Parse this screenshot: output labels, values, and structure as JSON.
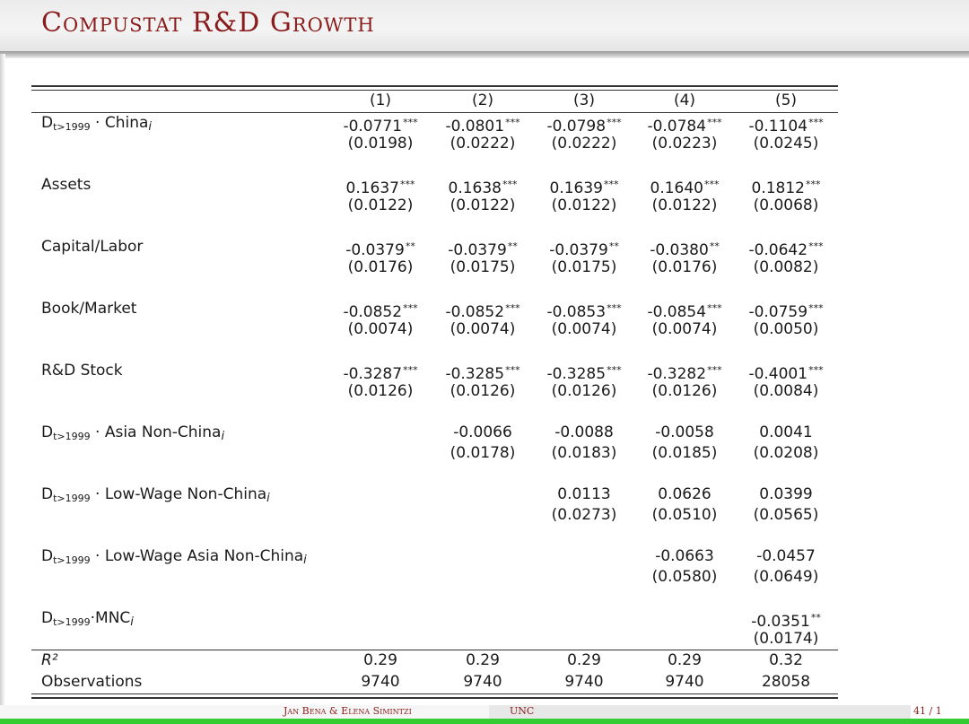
{
  "slide": {
    "title": "Compustat R&D Growth"
  },
  "table": {
    "columns": [
      "(1)",
      "(2)",
      "(3)",
      "(4)",
      "(5)"
    ],
    "rows": [
      {
        "label_main": "D",
        "label_sub": "t>1999",
        "label_rest": " · China",
        "label_idx": "i",
        "coef": [
          "-0.0771",
          "-0.0801",
          "-0.0798",
          "-0.0784",
          "-0.1104"
        ],
        "stars": [
          "***",
          "***",
          "***",
          "***",
          "***"
        ],
        "se": [
          "(0.0198)",
          "(0.0222)",
          "(0.0222)",
          "(0.0223)",
          "(0.0245)"
        ]
      },
      {
        "label_main": "Assets",
        "label_sub": "",
        "label_rest": "",
        "label_idx": "",
        "coef": [
          "0.1637",
          "0.1638",
          "0.1639",
          "0.1640",
          "0.1812"
        ],
        "stars": [
          "***",
          "***",
          "***",
          "***",
          "***"
        ],
        "se": [
          "(0.0122)",
          "(0.0122)",
          "(0.0122)",
          "(0.0122)",
          "(0.0068)"
        ]
      },
      {
        "label_main": "Capital/Labor",
        "label_sub": "",
        "label_rest": "",
        "label_idx": "",
        "coef": [
          "-0.0379",
          "-0.0379",
          "-0.0379",
          "-0.0380",
          "-0.0642"
        ],
        "stars": [
          "**",
          "**",
          "**",
          "**",
          "***"
        ],
        "se": [
          "(0.0176)",
          "(0.0175)",
          "(0.0175)",
          "(0.0176)",
          "(0.0082)"
        ]
      },
      {
        "label_main": "Book/Market",
        "label_sub": "",
        "label_rest": "",
        "label_idx": "",
        "coef": [
          "-0.0852",
          "-0.0852",
          "-0.0853",
          "-0.0854",
          "-0.0759"
        ],
        "stars": [
          "***",
          "***",
          "***",
          "***",
          "***"
        ],
        "se": [
          "(0.0074)",
          "(0.0074)",
          "(0.0074)",
          "(0.0074)",
          "(0.0050)"
        ]
      },
      {
        "label_main": "R&D Stock",
        "label_sub": "",
        "label_rest": "",
        "label_idx": "",
        "coef": [
          "-0.3287",
          "-0.3285",
          "-0.3285",
          "-0.3282",
          "-0.4001"
        ],
        "stars": [
          "***",
          "***",
          "***",
          "***",
          "***"
        ],
        "se": [
          "(0.0126)",
          "(0.0126)",
          "(0.0126)",
          "(0.0126)",
          "(0.0084)"
        ]
      },
      {
        "label_main": "D",
        "label_sub": "t>1999",
        "label_rest": " · Asia Non-China",
        "label_idx": "i",
        "coef": [
          "",
          "-0.0066",
          "-0.0088",
          "-0.0058",
          "0.0041"
        ],
        "stars": [
          "",
          "",
          "",
          "",
          ""
        ],
        "se": [
          "",
          "(0.0178)",
          "(0.0183)",
          "(0.0185)",
          "(0.0208)"
        ]
      },
      {
        "label_main": "D",
        "label_sub": "t>1999",
        "label_rest": " · Low-Wage Non-China",
        "label_idx": "i",
        "coef": [
          "",
          "",
          "0.0113",
          "0.0626",
          "0.0399"
        ],
        "stars": [
          "",
          "",
          "",
          "",
          ""
        ],
        "se": [
          "",
          "",
          "(0.0273)",
          "(0.0510)",
          "(0.0565)"
        ]
      },
      {
        "label_main": "D",
        "label_sub": "t>1999",
        "label_rest": " · Low-Wage Asia Non-China",
        "label_idx": "i",
        "coef": [
          "",
          "",
          "",
          "-0.0663",
          "-0.0457"
        ],
        "stars": [
          "",
          "",
          "",
          "",
          ""
        ],
        "se": [
          "",
          "",
          "",
          "(0.0580)",
          "(0.0649)"
        ]
      },
      {
        "label_main": "D",
        "label_sub": "t>1999",
        "label_rest": "·MNC",
        "label_idx": "i",
        "coef": [
          "",
          "",
          "",
          "",
          "-0.0351"
        ],
        "stars": [
          "",
          "",
          "",
          "",
          "**"
        ],
        "se": [
          "",
          "",
          "",
          "",
          "(0.0174)"
        ]
      }
    ],
    "r2": {
      "label": "R²",
      "values": [
        "0.29",
        "0.29",
        "0.29",
        "0.29",
        "0.32"
      ]
    },
    "obs": {
      "label": "Observations",
      "values": [
        "9740",
        "9740",
        "9740",
        "9740",
        "28058"
      ]
    }
  },
  "footer": {
    "authors": "Jan Bena & Elena Simintzi",
    "institution": "UNC",
    "page": "41 / 1"
  }
}
